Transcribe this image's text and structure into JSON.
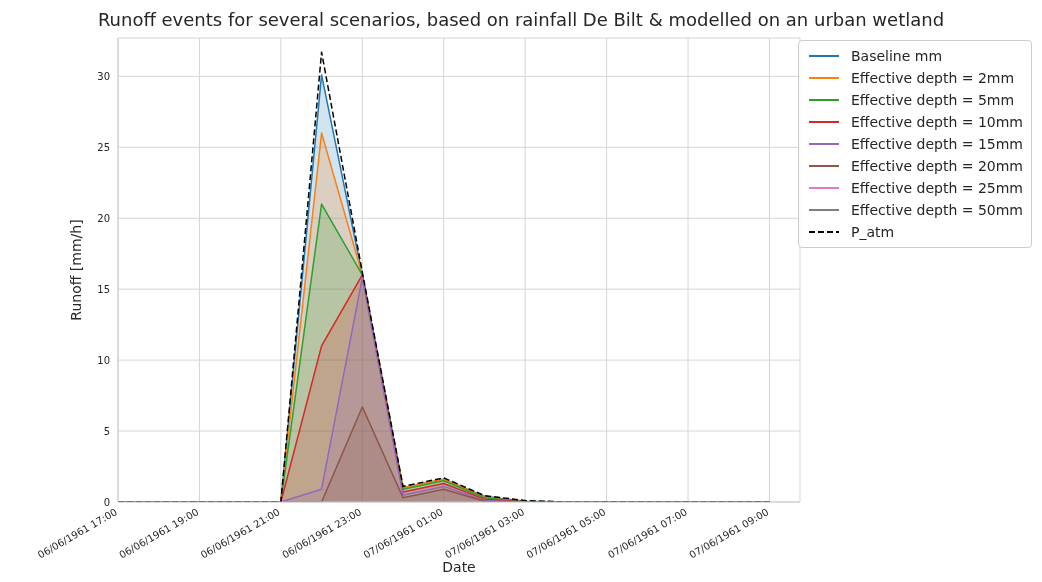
{
  "chart_data": {
    "type": "area",
    "title": "Runoff events for several scenarios, based on rainfall De Bilt & modelled on an urban wetland",
    "xlabel": "Date",
    "ylabel": "Runoff [mm/h]",
    "x": [
      "1961-06-06T17:00",
      "1961-06-06T18:00",
      "1961-06-06T19:00",
      "1961-06-06T20:00",
      "1961-06-06T21:00",
      "1961-06-06T22:00",
      "1961-06-06T23:00",
      "1961-06-07T00:00",
      "1961-06-07T01:00",
      "1961-06-07T02:00",
      "1961-06-07T03:00",
      "1961-06-07T04:00",
      "1961-06-07T05:00",
      "1961-06-07T06:00",
      "1961-06-07T07:00",
      "1961-06-07T08:00",
      "1961-06-07T09:00"
    ],
    "series": [
      {
        "name": "Baseline mm",
        "color": "#1f77b4",
        "values": [
          0,
          0,
          0,
          0,
          0,
          30.1,
          16.0,
          1.0,
          1.6,
          0.4,
          0.05,
          0,
          0,
          0,
          0,
          0,
          0
        ]
      },
      {
        "name": "Effective depth = 2mm",
        "color": "#ff7f0e",
        "values": [
          0,
          0,
          0,
          0,
          0,
          26.0,
          16.0,
          1.0,
          1.6,
          0.35,
          0,
          0,
          0,
          0,
          0,
          0,
          0
        ]
      },
      {
        "name": "Effective depth = 5mm",
        "color": "#2ca02c",
        "values": [
          0,
          0,
          0,
          0,
          0,
          21.0,
          16.0,
          0.9,
          1.5,
          0.3,
          0,
          0,
          0,
          0,
          0,
          0,
          0
        ]
      },
      {
        "name": "Effective depth = 10mm",
        "color": "#d62728",
        "values": [
          0,
          0,
          0,
          0,
          0,
          11.0,
          16.0,
          0.7,
          1.3,
          0.2,
          0,
          0,
          0,
          0,
          0,
          0,
          0
        ]
      },
      {
        "name": "Effective depth = 15mm",
        "color": "#9467bd",
        "values": [
          0,
          0,
          0,
          0,
          0,
          0.9,
          15.8,
          0.5,
          1.1,
          0.1,
          0,
          0,
          0,
          0,
          0,
          0,
          0
        ]
      },
      {
        "name": "Effective depth = 20mm",
        "color": "#8c564b",
        "values": [
          0,
          0,
          0,
          0,
          0,
          0,
          6.7,
          0.3,
          0.9,
          0.05,
          0,
          0,
          0,
          0,
          0,
          0,
          0
        ]
      },
      {
        "name": "Effective depth = 25mm",
        "color": "#e377c2",
        "values": [
          null,
          null,
          null,
          null,
          null,
          null,
          null,
          null,
          null,
          null,
          null,
          null,
          null,
          null,
          null,
          null,
          null
        ]
      },
      {
        "name": "Effective depth = 50mm",
        "color": "#7f7f7f",
        "values": [
          null,
          null,
          null,
          null,
          null,
          null,
          null,
          null,
          null,
          null,
          null,
          null,
          null,
          null,
          null,
          null,
          null
        ]
      },
      {
        "name": "P_atm",
        "type": "line",
        "line_style": "dashed",
        "color": "#000000",
        "values": [
          0,
          0,
          0,
          0,
          0,
          31.7,
          16.2,
          1.1,
          1.7,
          0.45,
          0.1,
          0,
          0,
          0,
          0,
          0,
          0
        ]
      }
    ],
    "xlim": [
      "1961-06-06T17:00",
      "1961-06-07T09:45"
    ],
    "xticks": [
      {
        "value": "1961-06-06T17:00",
        "label": "06/06/1961 17:00"
      },
      {
        "value": "1961-06-06T19:00",
        "label": "06/06/1961 19:00"
      },
      {
        "value": "1961-06-06T21:00",
        "label": "06/06/1961 21:00"
      },
      {
        "value": "1961-06-06T23:00",
        "label": "06/06/1961 23:00"
      },
      {
        "value": "1961-06-07T01:00",
        "label": "07/06/1961 01:00"
      },
      {
        "value": "1961-06-07T03:00",
        "label": "07/06/1961 03:00"
      },
      {
        "value": "1961-06-07T05:00",
        "label": "07/06/1961 05:00"
      },
      {
        "value": "1961-06-07T07:00",
        "label": "07/06/1961 07:00"
      },
      {
        "value": "1961-06-07T09:00",
        "label": "07/06/1961 09:00"
      }
    ],
    "ylim": [
      0,
      32.7
    ],
    "yticks": [
      0,
      5,
      10,
      15,
      20,
      25,
      30
    ],
    "grid": true,
    "legend": "top right"
  }
}
